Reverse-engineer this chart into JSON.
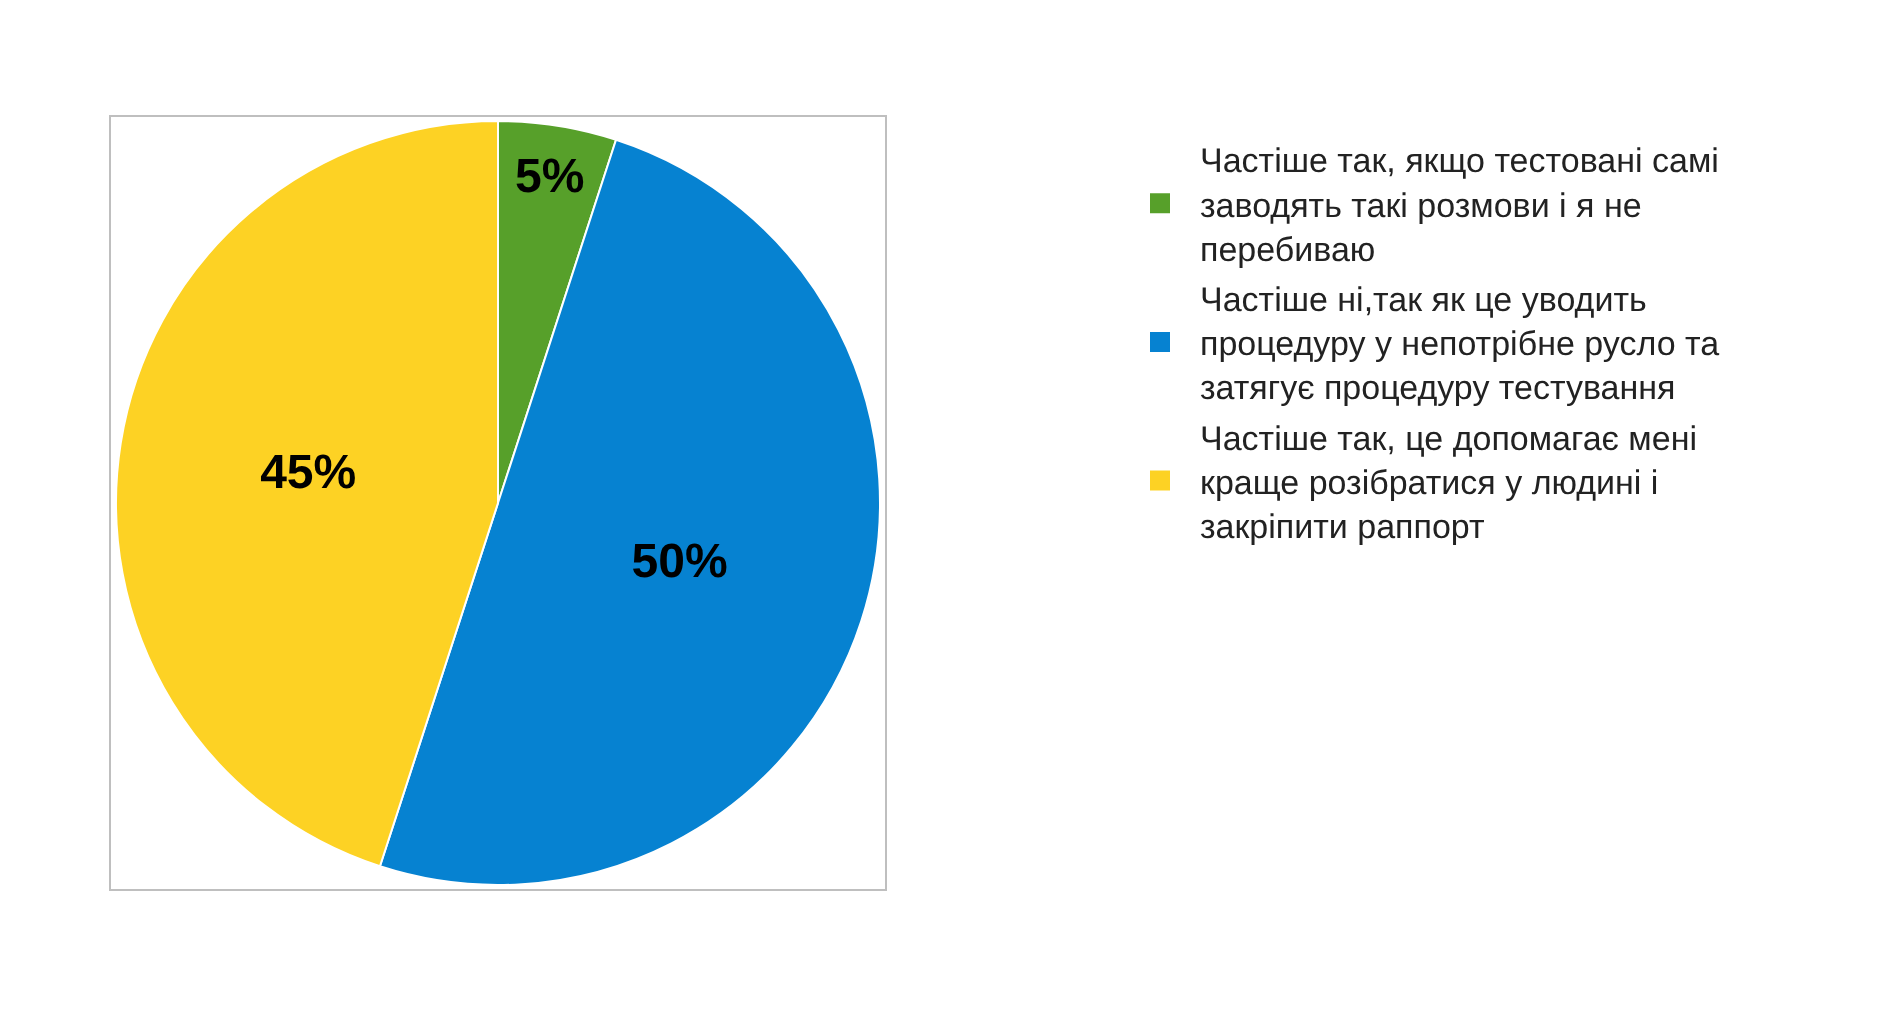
{
  "chart_data": {
    "type": "pie",
    "categories": [
      "Частіше так, якщо тестовані самі заводять такі розмови і я не перебиваю",
      "Частіше ні,так як це уводить процедуру у непотрібне русло та затягує процедуру тестування",
      "Частіше так, це допомагає мені краще розібратися у людині і закріпити раппорт"
    ],
    "values": [
      5,
      50,
      45
    ],
    "colors": [
      "#57a02a",
      "#0682d1",
      "#fdd224"
    ],
    "value_labels": [
      "5%",
      "50%",
      "45%"
    ],
    "legend": "right"
  }
}
